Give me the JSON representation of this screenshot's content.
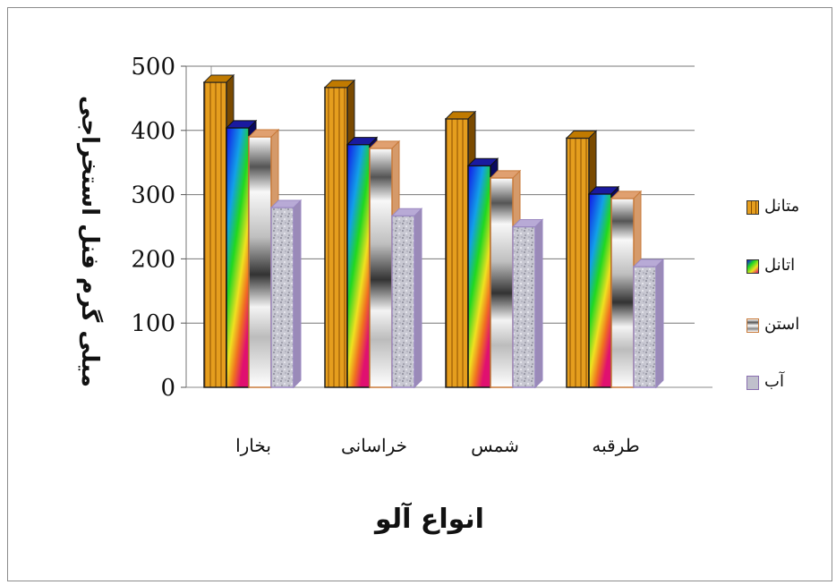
{
  "chart_data": {
    "type": "bar",
    "categories": [
      "بخارا",
      "خراسانی",
      "شمس",
      "طرقبه"
    ],
    "series": [
      {
        "name": "متانل",
        "values": [
          475,
          467,
          418,
          388
        ],
        "color": "#e39a16"
      },
      {
        "name": "اتانل",
        "values": [
          404,
          378,
          345,
          301
        ],
        "color": "#2a2ef0"
      },
      {
        "name": "استن",
        "values": [
          390,
          372,
          326,
          294
        ],
        "color": "#cfcfcf"
      },
      {
        "name": "آب",
        "values": [
          280,
          267,
          250,
          188
        ],
        "color": "#b9b9c9"
      }
    ],
    "ylim": [
      0,
      500
    ],
    "yticks": [
      "0",
      "100",
      "200",
      "300",
      "400",
      "500"
    ],
    "xlabel": "انواع آلو",
    "ylabel": "میلی گرم فنل استخراجی",
    "grid": true,
    "legend": "right"
  }
}
